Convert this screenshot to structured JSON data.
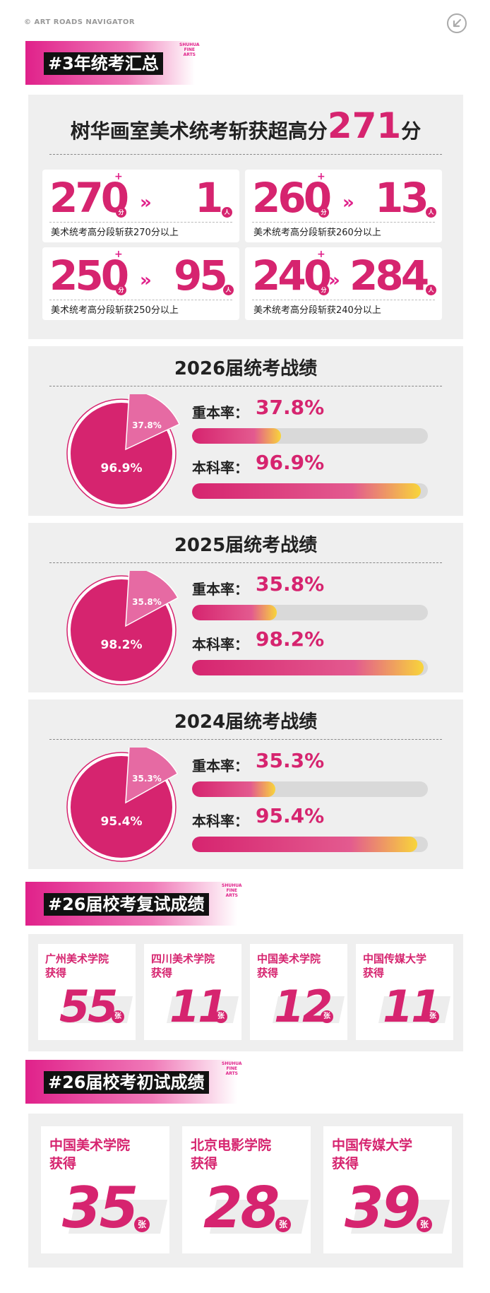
{
  "brand": {
    "top_label": "© ART ROADS NAVIGATOR",
    "sub_mark": [
      "SHUHUA",
      "FINE ARTS"
    ],
    "accent": "#d6246f",
    "nav_icon": "arrow-circle-icon"
  },
  "summary": {
    "section_title": "#3年统考汇总",
    "headline_prefix": "树华画室美术统考斩获超高分",
    "headline_score": "271",
    "headline_suffix": "分",
    "tiers": [
      {
        "score": "270",
        "plus": "+",
        "unit_score": "分",
        "arrow": "»",
        "count": "1",
        "unit_count": "人",
        "caption": "美术统考高分段斩获270分以上"
      },
      {
        "score": "260",
        "plus": "+",
        "unit_score": "分",
        "arrow": "»",
        "count": "13",
        "unit_count": "人",
        "caption": "美术统考高分段斩获260分以上"
      },
      {
        "score": "250",
        "plus": "+",
        "unit_score": "分",
        "arrow": "»",
        "count": "95",
        "unit_count": "人",
        "caption": "美术统考高分段斩获250分以上"
      },
      {
        "score": "240",
        "plus": "+",
        "unit_score": "分",
        "arrow": "»",
        "count": "284",
        "unit_count": "人",
        "caption": "美术统考高分段斩获240分以上"
      }
    ]
  },
  "years": [
    {
      "title": "2026届统考战绩",
      "key_rate_label": "重本率：",
      "key_rate": "37.8%",
      "key_rate_value": 0.378,
      "bachelor_label": "本科率：",
      "bachelor_rate": "96.9%",
      "bachelor_rate_value": 0.969,
      "pie_small": "37.8%",
      "pie_big": "96.9%"
    },
    {
      "title": "2025届统考战绩",
      "key_rate_label": "重本率：",
      "key_rate": "35.8%",
      "key_rate_value": 0.358,
      "bachelor_label": "本科率：",
      "bachelor_rate": "98.2%",
      "bachelor_rate_value": 0.982,
      "pie_small": "35.8%",
      "pie_big": "98.2%"
    },
    {
      "title": "2024届统考战绩",
      "key_rate_label": "重本率：",
      "key_rate": "35.3%",
      "key_rate_value": 0.353,
      "bachelor_label": "本科率：",
      "bachelor_rate": "95.4%",
      "bachelor_rate_value": 0.954,
      "pie_small": "35.3%",
      "pie_big": "95.4%"
    }
  ],
  "retest": {
    "section_title": "#26届校考复试成绩",
    "schools": [
      {
        "name": "广州美术学院",
        "got": "获得",
        "count": "55",
        "unit": "张"
      },
      {
        "name": "四川美术学院",
        "got": "获得",
        "count": "11",
        "unit": "张"
      },
      {
        "name": "中国美术学院",
        "got": "获得",
        "count": "12",
        "unit": "张"
      },
      {
        "name": "中国传媒大学",
        "got": "获得",
        "count": "11",
        "unit": "张"
      }
    ]
  },
  "initial": {
    "section_title": "#26届校考初试成绩",
    "schools": [
      {
        "name": "中国美术学院",
        "got": "获得",
        "count": "35",
        "unit": "张"
      },
      {
        "name": "北京电影学院",
        "got": "获得",
        "count": "28",
        "unit": "张"
      },
      {
        "name": "中国传媒大学",
        "got": "获得",
        "count": "39",
        "unit": "张"
      }
    ]
  }
}
